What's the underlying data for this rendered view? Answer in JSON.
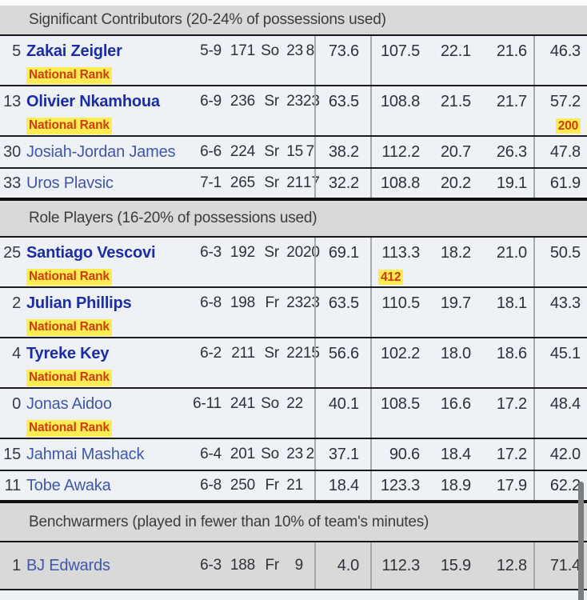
{
  "national_rank_label": "National Rank",
  "colors": {
    "bold_name": "#1b2da4",
    "plain_name": "#4056a8",
    "rank_text": "#cc3e0b",
    "rank_highlight": "#ffec52",
    "row_bg": "#eef2f7",
    "header_bg": "#d9d9d9"
  },
  "sections": [
    {
      "header": "Significant Contributors (20-24% of possessions used)",
      "players": [
        {
          "number": "5",
          "name": "Zakai Zeigler",
          "bold": true,
          "national_rank": true,
          "bio": [
            "5-9",
            "171",
            "So",
            "23",
            "8"
          ],
          "pct": "73.6",
          "group": [
            "107.5",
            "22.1",
            "21.6"
          ],
          "group_ranks": [
            "",
            "",
            ""
          ],
          "last": "46.3",
          "last_rank": ""
        },
        {
          "number": "13",
          "name": "Olivier Nkamhoua",
          "bold": true,
          "national_rank": true,
          "bio": [
            "6-9",
            "236",
            "Sr",
            "23",
            "23"
          ],
          "pct": "63.5",
          "group": [
            "108.8",
            "21.5",
            "21.7"
          ],
          "group_ranks": [
            "",
            "",
            ""
          ],
          "last": "57.2",
          "last_rank": "200"
        },
        {
          "number": "30",
          "name": "Josiah-Jordan James",
          "bold": false,
          "national_rank": false,
          "bio": [
            "6-6",
            "224",
            "Sr",
            "15",
            "7"
          ],
          "pct": "38.2",
          "group": [
            "112.2",
            "20.7",
            "26.3"
          ],
          "group_ranks": [
            "",
            "",
            ""
          ],
          "last": "47.8",
          "last_rank": ""
        },
        {
          "number": "33",
          "name": "Uros Plavsic",
          "bold": false,
          "national_rank": false,
          "bio": [
            "7-1",
            "265",
            "Sr",
            "21",
            "17"
          ],
          "pct": "32.2",
          "group": [
            "108.8",
            "20.2",
            "19.1"
          ],
          "group_ranks": [
            "",
            "",
            ""
          ],
          "last": "61.9",
          "last_rank": ""
        }
      ]
    },
    {
      "header": "Role Players (16-20% of possessions used)",
      "players": [
        {
          "number": "25",
          "name": "Santiago Vescovi",
          "bold": true,
          "national_rank": true,
          "bio": [
            "6-3",
            "192",
            "Sr",
            "20",
            "20"
          ],
          "pct": "69.1",
          "group": [
            "113.3",
            "18.2",
            "21.0"
          ],
          "group_ranks": [
            "412",
            "",
            ""
          ],
          "last": "50.5",
          "last_rank": ""
        },
        {
          "number": "2",
          "name": "Julian Phillips",
          "bold": true,
          "national_rank": true,
          "bio": [
            "6-8",
            "198",
            "Fr",
            "23",
            "23"
          ],
          "pct": "63.5",
          "group": [
            "110.5",
            "19.7",
            "18.1"
          ],
          "group_ranks": [
            "",
            "",
            ""
          ],
          "last": "43.3",
          "last_rank": ""
        },
        {
          "number": "4",
          "name": "Tyreke Key",
          "bold": true,
          "national_rank": true,
          "bio": [
            "6-2",
            "211",
            "Sr",
            "22",
            "15"
          ],
          "pct": "56.6",
          "group": [
            "102.2",
            "18.0",
            "18.6"
          ],
          "group_ranks": [
            "",
            "",
            ""
          ],
          "last": "45.1",
          "last_rank": ""
        },
        {
          "number": "0",
          "name": "Jonas Aidoo",
          "bold": false,
          "national_rank": true,
          "bio": [
            "6-11",
            "241",
            "So",
            "22",
            ""
          ],
          "pct": "40.1",
          "group": [
            "108.5",
            "16.6",
            "17.2"
          ],
          "group_ranks": [
            "",
            "",
            ""
          ],
          "last": "48.4",
          "last_rank": ""
        },
        {
          "number": "15",
          "name": "Jahmai Mashack",
          "bold": false,
          "national_rank": false,
          "bio": [
            "6-4",
            "201",
            "So",
            "23",
            "2"
          ],
          "pct": "37.1",
          "group": [
            "90.6",
            "18.4",
            "17.2"
          ],
          "group_ranks": [
            "",
            "",
            ""
          ],
          "last": "42.0",
          "last_rank": ""
        },
        {
          "number": "11",
          "name": "Tobe Awaka",
          "bold": false,
          "national_rank": false,
          "bio": [
            "6-8",
            "250",
            "Fr",
            "21",
            ""
          ],
          "pct": "18.4",
          "group": [
            "123.3",
            "18.9",
            "17.9"
          ],
          "group_ranks": [
            "",
            "",
            ""
          ],
          "last": "62.2",
          "last_rank": ""
        }
      ]
    },
    {
      "header": "Benchwarmers (played in fewer than 10% of team's minutes)",
      "players": [
        {
          "number": "1",
          "name": "BJ Edwards",
          "bold": false,
          "national_rank": false,
          "gray": true,
          "bio": [
            "6-3",
            "188",
            "Fr",
            "9",
            ""
          ],
          "pct": "4.0",
          "group": [
            "112.3",
            "15.9",
            "12.8"
          ],
          "group_ranks": [
            "",
            "",
            ""
          ],
          "last": "71.4",
          "last_rank": ""
        }
      ]
    }
  ]
}
